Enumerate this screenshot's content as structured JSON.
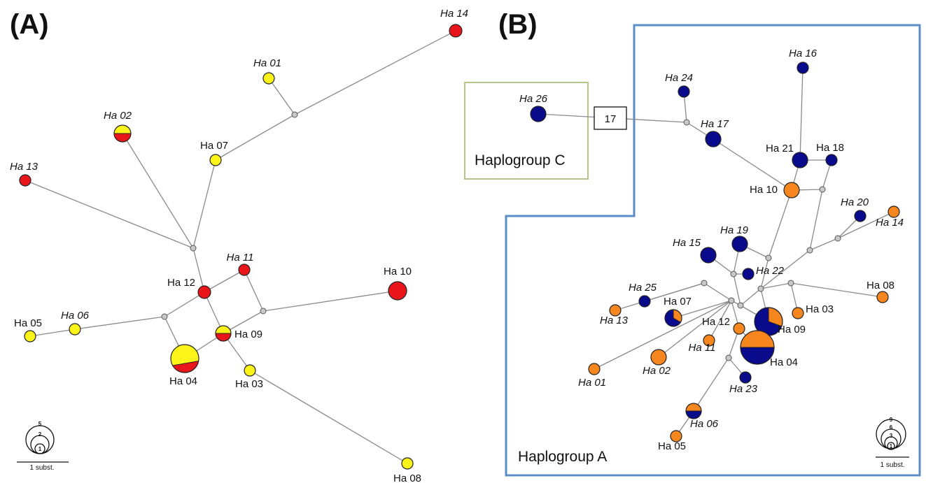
{
  "panel_a": {
    "label": "(A)",
    "scale_text": "1 subst.",
    "size_legend": [
      "5",
      "2",
      "1"
    ],
    "colors": {
      "red": "#e8151b",
      "yellow": "#fcf318"
    },
    "haplotypes": [
      {
        "name": "Ha 14",
        "italic": true
      },
      {
        "name": "Ha 01",
        "italic": true
      },
      {
        "name": "Ha 02",
        "italic": true
      },
      {
        "name": "Ha 07",
        "italic": false
      },
      {
        "name": "Ha 13",
        "italic": true
      },
      {
        "name": "Ha 11",
        "italic": true
      },
      {
        "name": "Ha 12",
        "italic": false
      },
      {
        "name": "Ha 10",
        "italic": false
      },
      {
        "name": "Ha 05",
        "italic": false
      },
      {
        "name": "Ha 06",
        "italic": true
      },
      {
        "name": "Ha 09",
        "italic": false
      },
      {
        "name": "Ha 04",
        "italic": false
      },
      {
        "name": "Ha 03",
        "italic": false
      },
      {
        "name": "Ha 08",
        "italic": false
      }
    ]
  },
  "panel_b": {
    "label": "(B)",
    "scale_text": "1 subst.",
    "size_legend": [
      "9",
      "6",
      "3",
      "1"
    ],
    "mutation_box": "17",
    "haplogroup_c": "Haplogroup C",
    "haplogroup_a": "Haplogroup A",
    "colors": {
      "blue": "#0a0a8c",
      "orange": "#f7861e",
      "box_a": "#5b8ec7",
      "box_c": "#b5c48a"
    },
    "haplotypes": [
      {
        "name": "Ha 16",
        "italic": true
      },
      {
        "name": "Ha 24",
        "italic": true
      },
      {
        "name": "Ha 26",
        "italic": true
      },
      {
        "name": "Ha 17",
        "italic": true
      },
      {
        "name": "Ha 21",
        "italic": false
      },
      {
        "name": "Ha 18",
        "italic": false
      },
      {
        "name": "Ha 10",
        "italic": false
      },
      {
        "name": "Ha 20",
        "italic": true
      },
      {
        "name": "Ha 14",
        "italic": true
      },
      {
        "name": "Ha 19",
        "italic": true
      },
      {
        "name": "Ha 15",
        "italic": true
      },
      {
        "name": "Ha 22",
        "italic": true
      },
      {
        "name": "Ha 25",
        "italic": true
      },
      {
        "name": "Ha 07",
        "italic": false
      },
      {
        "name": "Ha 13",
        "italic": true
      },
      {
        "name": "Ha 12",
        "italic": false
      },
      {
        "name": "Ha 08",
        "italic": false
      },
      {
        "name": "Ha 03",
        "italic": false
      },
      {
        "name": "Ha 09",
        "italic": false
      },
      {
        "name": "Ha 11",
        "italic": true
      },
      {
        "name": "Ha 04",
        "italic": false
      },
      {
        "name": "Ha 02",
        "italic": true
      },
      {
        "name": "Ha 01",
        "italic": true
      },
      {
        "name": "Ha 23",
        "italic": true
      },
      {
        "name": "Ha 06",
        "italic": true
      },
      {
        "name": "Ha 05",
        "italic": false
      }
    ]
  }
}
